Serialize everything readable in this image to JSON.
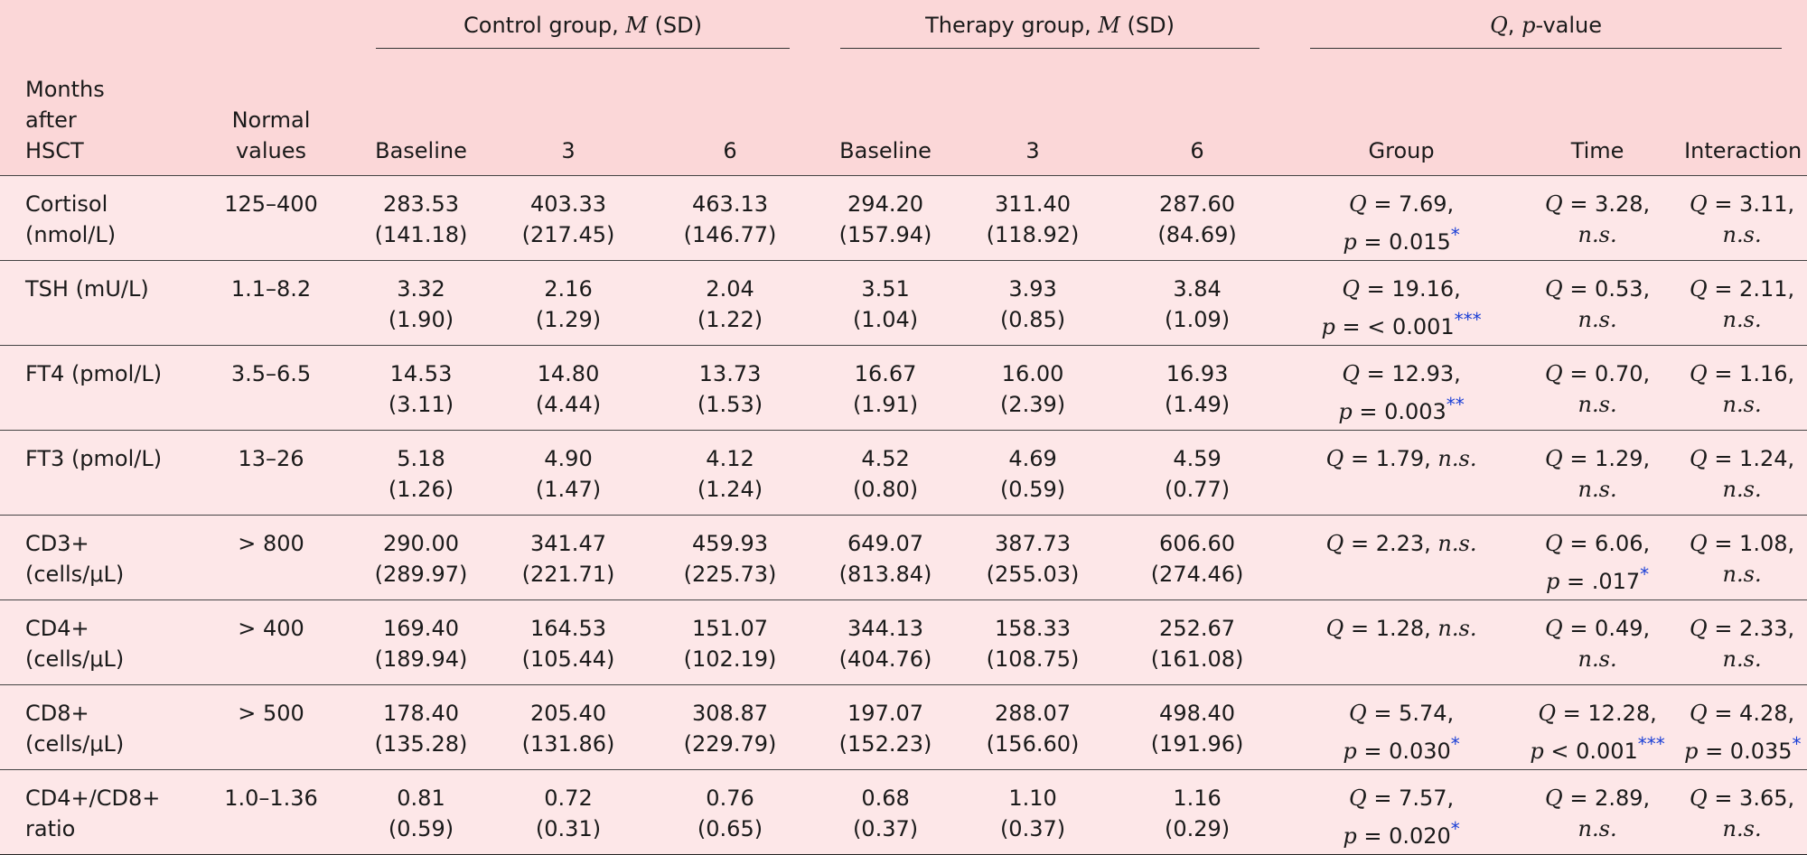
{
  "header": {
    "group_labels": {
      "control": {
        "prefix": "Control group, ",
        "italic": "M",
        "suffix": " (SD)"
      },
      "therapy": {
        "prefix": "Therapy group, ",
        "italic": "M",
        "suffix": " (SD)"
      },
      "stats": {
        "italic1": "Q",
        "mid": ", ",
        "italic2": "p",
        "suffix": "-value"
      }
    },
    "col_months": [
      "Months",
      "after",
      "HSCT"
    ],
    "col_normal": [
      "Normal",
      "values"
    ],
    "sub": [
      "Baseline",
      "3",
      "6",
      "Baseline",
      "3",
      "6",
      "Group",
      "Time",
      "Interaction"
    ]
  },
  "rows": [
    {
      "label": [
        "Cortisol",
        "(nmol/L)"
      ],
      "normal": "125–400",
      "vals": [
        [
          "283.53",
          "(141.18)"
        ],
        [
          "403.33",
          "(217.45)"
        ],
        [
          "463.13",
          "(146.77)"
        ],
        [
          "294.20",
          "(157.94)"
        ],
        [
          "311.40",
          "(118.92)"
        ],
        [
          "287.60",
          "(84.69)"
        ]
      ],
      "group": {
        "q": " = 7.69,",
        "p": " = 0.015",
        "stars": "*"
      },
      "time": {
        "q": " = 3.28,",
        "ns": "n.s."
      },
      "inter": {
        "q": " = 3.11,",
        "ns": "n.s."
      }
    },
    {
      "label": [
        "TSH (mU/L)"
      ],
      "normal": "1.1–8.2",
      "vals": [
        [
          "3.32",
          "(1.90)"
        ],
        [
          "2.16",
          "(1.29)"
        ],
        [
          "2.04",
          "(1.22)"
        ],
        [
          "3.51",
          "(1.04)"
        ],
        [
          "3.93",
          "(0.85)"
        ],
        [
          "3.84",
          "(1.09)"
        ]
      ],
      "group": {
        "q": " = 19.16,",
        "p": " = < 0.001",
        "stars": "***"
      },
      "time": {
        "q": " = 0.53,",
        "ns": "n.s."
      },
      "inter": {
        "q": " = 2.11,",
        "ns": "n.s."
      }
    },
    {
      "label": [
        "FT4 (pmol/L)"
      ],
      "normal": "3.5–6.5",
      "vals": [
        [
          "14.53",
          "(3.11)"
        ],
        [
          "14.80",
          "(4.44)"
        ],
        [
          "13.73",
          "(1.53)"
        ],
        [
          "16.67",
          "(1.91)"
        ],
        [
          "16.00",
          "(2.39)"
        ],
        [
          "16.93",
          "(1.49)"
        ]
      ],
      "group": {
        "q": " = 12.93,",
        "p": " = 0.003",
        "stars": "**"
      },
      "time": {
        "q": " = 0.70,",
        "ns": "n.s."
      },
      "inter": {
        "q": " = 1.16,",
        "ns": "n.s."
      }
    },
    {
      "label": [
        "FT3 (pmol/L)"
      ],
      "normal": "13–26",
      "vals": [
        [
          "5.18",
          "(1.26)"
        ],
        [
          "4.90",
          "(1.47)"
        ],
        [
          "4.12",
          "(1.24)"
        ],
        [
          "4.52",
          "(0.80)"
        ],
        [
          "4.69",
          "(0.59)"
        ],
        [
          "4.59",
          "(0.77)"
        ]
      ],
      "group": {
        "qns": " = 1.79, ",
        "ns": "n.s."
      },
      "time": {
        "q": " = 1.29,",
        "ns": "n.s."
      },
      "inter": {
        "q": " = 1.24,",
        "ns": "n.s."
      }
    },
    {
      "label": [
        "CD3+",
        "(cells/μL)"
      ],
      "normal": "> 800",
      "vals": [
        [
          "290.00",
          "(289.97)"
        ],
        [
          "341.47",
          "(221.71)"
        ],
        [
          "459.93",
          "(225.73)"
        ],
        [
          "649.07",
          "(813.84)"
        ],
        [
          "387.73",
          "(255.03)"
        ],
        [
          "606.60",
          "(274.46)"
        ]
      ],
      "group": {
        "qns": " = 2.23, ",
        "ns": "n.s."
      },
      "time": {
        "q": " = 6.06,",
        "p": " = .017",
        "stars": "*"
      },
      "inter": {
        "q": " = 1.08,",
        "ns": "n.s."
      }
    },
    {
      "label": [
        "CD4+",
        "(cells/μL)"
      ],
      "normal": "> 400",
      "vals": [
        [
          "169.40",
          "(189.94)"
        ],
        [
          "164.53",
          "(105.44)"
        ],
        [
          "151.07",
          "(102.19)"
        ],
        [
          "344.13",
          "(404.76)"
        ],
        [
          "158.33",
          "(108.75)"
        ],
        [
          "252.67",
          "(161.08)"
        ]
      ],
      "group": {
        "qns": " = 1.28, ",
        "ns": "n.s."
      },
      "time": {
        "q": " = 0.49,",
        "ns": "n.s."
      },
      "inter": {
        "q": " = 2.33,",
        "ns": "n.s."
      }
    },
    {
      "label": [
        "CD8+",
        "(cells/μL)"
      ],
      "normal": "> 500",
      "vals": [
        [
          "178.40",
          "(135.28)"
        ],
        [
          "205.40",
          "(131.86)"
        ],
        [
          "308.87",
          "(229.79)"
        ],
        [
          "197.07",
          "(152.23)"
        ],
        [
          "288.07",
          "(156.60)"
        ],
        [
          "498.40",
          "(191.96)"
        ]
      ],
      "group": {
        "q": " = 5.74,",
        "p": " = 0.030",
        "stars": "*"
      },
      "time": {
        "q": " = 12.28,",
        "p": " < 0.001",
        "stars": "***"
      },
      "inter": {
        "q": " = 4.28,",
        "p": " = 0.035",
        "stars": "*"
      }
    },
    {
      "label": [
        "CD4+/CD8+",
        "ratio"
      ],
      "normal": "1.0–1.36",
      "vals": [
        [
          "0.81",
          "(0.59)"
        ],
        [
          "0.72",
          "(0.31)"
        ],
        [
          "0.76",
          "(0.65)"
        ],
        [
          "0.68",
          "(0.37)"
        ],
        [
          "1.10",
          "(0.37)"
        ],
        [
          "1.16",
          "(0.29)"
        ]
      ],
      "group": {
        "q": " = 7.57,",
        "p": " = 0.020",
        "stars": "*"
      },
      "time": {
        "q": " = 2.89,",
        "ns": "n.s."
      },
      "inter": {
        "q": " = 3.65,",
        "ns": "n.s."
      }
    }
  ]
}
